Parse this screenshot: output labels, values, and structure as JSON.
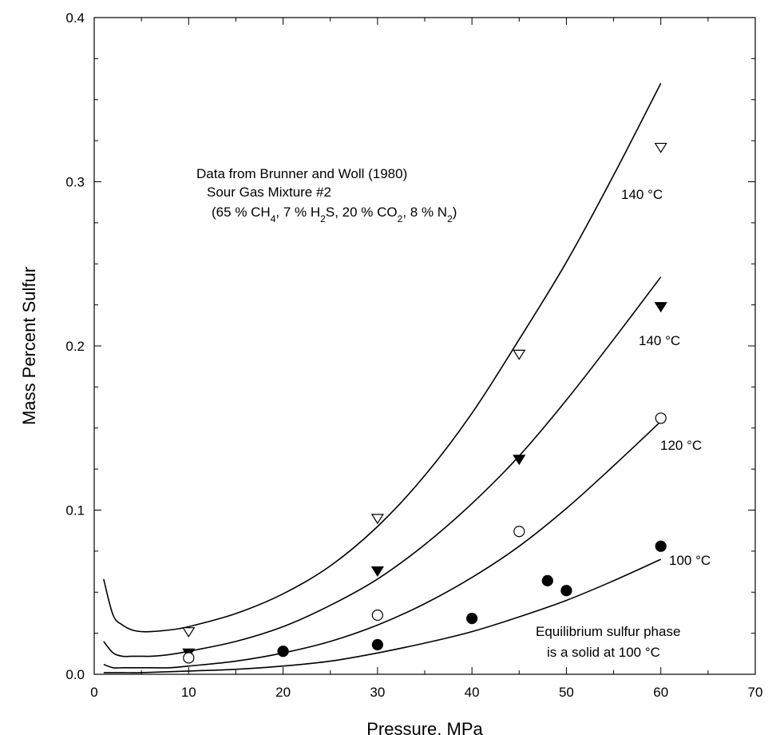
{
  "chart_data": {
    "type": "line",
    "xlabel": "Pressure, MPa",
    "ylabel": "Mass Percent Sulfur",
    "xlim": [
      0,
      70
    ],
    "ylim": [
      0.0,
      0.4
    ],
    "xticks": [
      "0",
      "10",
      "20",
      "30",
      "40",
      "50",
      "60",
      "70"
    ],
    "yticks": [
      "0.0",
      "0.1",
      "0.2",
      "0.3",
      "0.4"
    ],
    "grid": false,
    "curves": [
      {
        "label": "140 °C",
        "x": [
          1,
          2,
          3,
          4,
          5,
          6,
          8,
          10,
          15,
          20,
          25,
          30,
          35,
          40,
          45,
          50,
          55,
          60
        ],
        "y": [
          0.058,
          0.036,
          0.03,
          0.027,
          0.026,
          0.026,
          0.027,
          0.029,
          0.037,
          0.049,
          0.066,
          0.09,
          0.121,
          0.159,
          0.204,
          0.251,
          0.304,
          0.36
        ]
      },
      {
        "label": "140 °C",
        "x": [
          1,
          2,
          3,
          4,
          5,
          6,
          8,
          10,
          15,
          20,
          25,
          30,
          35,
          40,
          45,
          50,
          55,
          60
        ],
        "y": [
          0.02,
          0.013,
          0.011,
          0.011,
          0.011,
          0.011,
          0.012,
          0.014,
          0.02,
          0.029,
          0.042,
          0.058,
          0.079,
          0.104,
          0.133,
          0.167,
          0.204,
          0.242
        ]
      },
      {
        "label": "120 °C",
        "x": [
          1,
          2,
          3,
          5,
          8,
          10,
          15,
          20,
          25,
          30,
          35,
          40,
          45,
          50,
          55,
          60
        ],
        "y": [
          0.006,
          0.004,
          0.004,
          0.004,
          0.004,
          0.005,
          0.008,
          0.013,
          0.02,
          0.03,
          0.043,
          0.059,
          0.078,
          0.101,
          0.127,
          0.154
        ]
      },
      {
        "label": "100 °C",
        "x": [
          1,
          3,
          5,
          10,
          15,
          20,
          25,
          30,
          35,
          40,
          45,
          50,
          55,
          60
        ],
        "y": [
          0.001,
          0.001,
          0.001,
          0.002,
          0.003,
          0.005,
          0.008,
          0.013,
          0.019,
          0.026,
          0.035,
          0.045,
          0.057,
          0.07
        ]
      }
    ],
    "series": [
      {
        "marker": "open-triangle-down",
        "x": [
          10,
          30,
          45,
          60
        ],
        "y": [
          0.026,
          0.095,
          0.195,
          0.321
        ]
      },
      {
        "marker": "filled-triangle-down",
        "x": [
          10,
          30,
          45,
          60
        ],
        "y": [
          0.013,
          0.063,
          0.131,
          0.224
        ]
      },
      {
        "marker": "open-circle",
        "x": [
          10,
          30,
          45,
          60
        ],
        "y": [
          0.01,
          0.036,
          0.087,
          0.156
        ]
      },
      {
        "marker": "filled-circle",
        "x": [
          20,
          30,
          40,
          48,
          50,
          60
        ],
        "y": [
          0.014,
          0.018,
          0.034,
          0.057,
          0.051,
          0.078
        ]
      }
    ],
    "annotations": {
      "source_line1": "Data from Brunner and Woll (1980)",
      "source_line2": "Sour Gas Mixture #2",
      "source_line3": "(65 % CH4, 7 % H2S, 20 % CO2, 8 % N2)",
      "note_line1": "Equilibrium sulfur phase",
      "note_line2": "is a solid at 100 °C"
    }
  }
}
